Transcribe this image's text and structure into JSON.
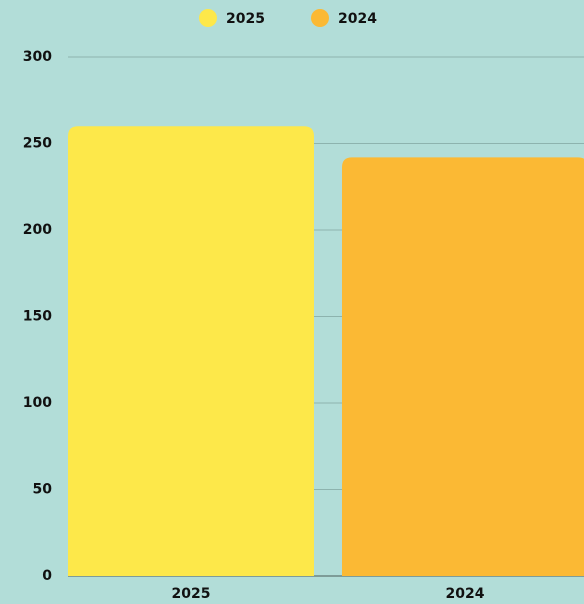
{
  "chart_data": {
    "type": "bar",
    "categories": [
      "2025",
      "2024"
    ],
    "values": [
      260,
      242
    ],
    "colors": [
      "#fde84a",
      "#fbb934"
    ],
    "ylim": [
      0,
      300
    ],
    "yticks": [
      0,
      50,
      100,
      150,
      200,
      250,
      300
    ],
    "grid": true,
    "legend": "top"
  }
}
